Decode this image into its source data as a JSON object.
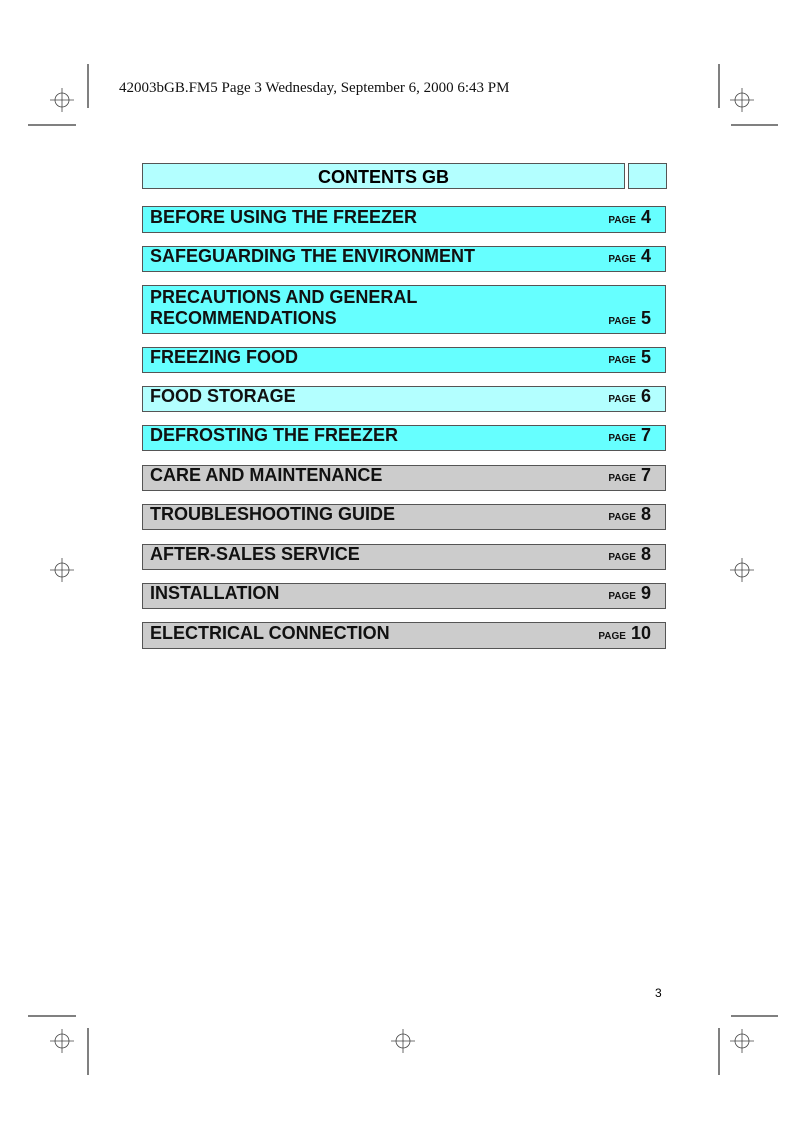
{
  "header": "42003bGB.FM5  Page 3  Wednesday, September 6, 2000  6:43 PM",
  "title": "CONTENTS GB",
  "page_label": "PAGE",
  "page_number": "3",
  "colors": {
    "bright": "#66ffff",
    "light": "#b3ffff",
    "grey": "#cccccc"
  },
  "items": [
    {
      "label": "BEFORE USING THE FREEZER",
      "page": "4"
    },
    {
      "label": "SAFEGUARDING THE ENVIRONMENT",
      "page": "4"
    },
    {
      "label": "PRECAUTIONS AND GENERAL RECOMMENDATIONS",
      "page": "5"
    },
    {
      "label": "FREEZING FOOD",
      "page": "5"
    },
    {
      "label": "FOOD STORAGE",
      "page": "6"
    },
    {
      "label": "DEFROSTING THE FREEZER",
      "page": "7"
    },
    {
      "label": "CARE AND MAINTENANCE",
      "page": "7"
    },
    {
      "label": "TROUBLESHOOTING GUIDE",
      "page": "8"
    },
    {
      "label": "AFTER-SALES SERVICE",
      "page": "8"
    },
    {
      "label": "INSTALLATION",
      "page": "9"
    },
    {
      "label": "ELECTRICAL CONNECTION",
      "page": "10"
    }
  ]
}
